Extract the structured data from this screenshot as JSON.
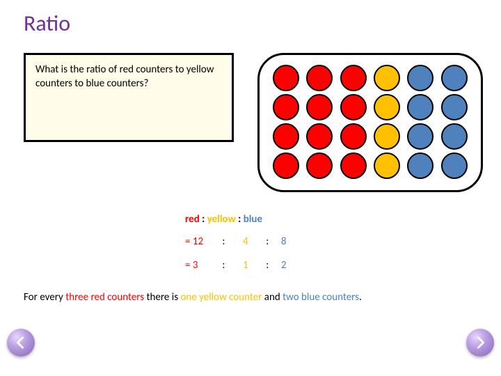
{
  "title": "Ratio",
  "title_color": "#7030a0",
  "question": "What is the ratio of red counters to yellow counters to blue counters?",
  "question_bg": "#fffde9",
  "colors": {
    "red": "#ff0000",
    "yellow": "#ffc000",
    "blue": "#4f81bd"
  },
  "counter_grid": [
    [
      "red",
      "red",
      "red",
      "yellow",
      "blue",
      "blue"
    ],
    [
      "red",
      "red",
      "red",
      "yellow",
      "blue",
      "blue"
    ],
    [
      "red",
      "red",
      "red",
      "yellow",
      "blue",
      "blue"
    ],
    [
      "red",
      "red",
      "red",
      "yellow",
      "blue",
      "blue"
    ]
  ],
  "label": {
    "red": "red",
    "sep1": " : ",
    "yellow": "yellow",
    "sep2": " : ",
    "blue": "blue"
  },
  "eq1": {
    "prefix": "= 12",
    "c1": ":",
    "v2": "4",
    "c2": ":",
    "v3": "8"
  },
  "eq2": {
    "prefix": "=  3",
    "c1": ":",
    "v2": "1",
    "c2": ":",
    "v3": "2"
  },
  "sentence": {
    "p1": "For every ",
    "p2": "three red counters",
    "p3": " there is ",
    "p4": "one yellow counter",
    "p5": " and ",
    "p6": "two blue counters",
    "p7": "."
  }
}
